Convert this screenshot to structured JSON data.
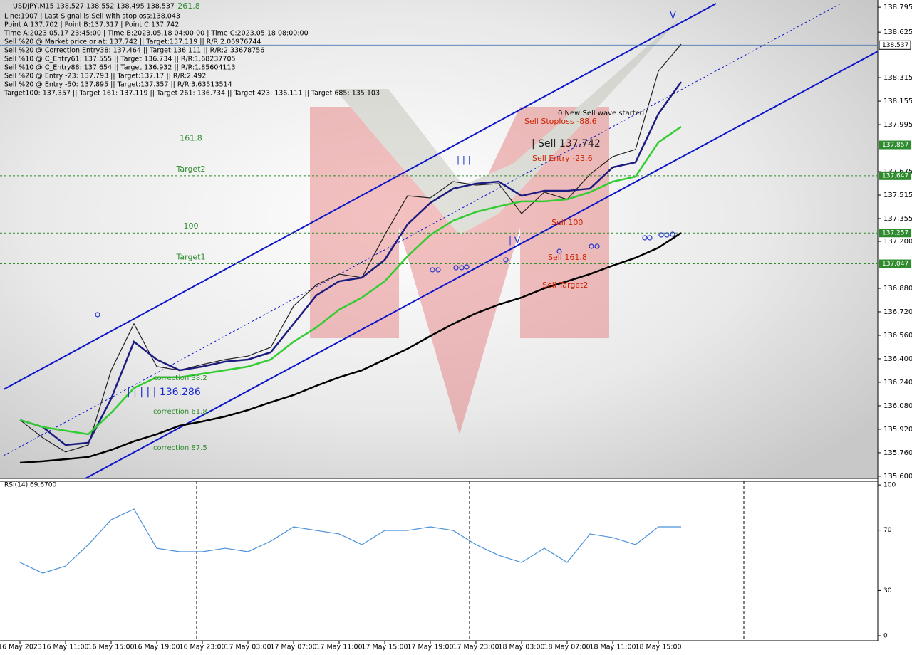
{
  "chart_data": [
    {
      "type": "line",
      "title": "USDJPY,M15  138.527 138.552 138.495 138.537",
      "info_lines": [
        "Line:1907 | Last Signal is:Sell with stoploss:138.043",
        "Point A:137.702 | Point B:137.317 | Point C:137.742",
        "Time A:2023.05.17 23:45:00 | Time B:2023.05.18 04:00:00 | Time C:2023.05.18 08:00:00",
        "Sell %20 @ Market price or at: 137.742 || Target:137.119 || R/R:2.06976744",
        "Sell %20 @ Correction Entry38: 137.464 || Target:136.111 || R/R:2.33678756",
        "Sell %10 @ C_Entry61: 137.555 || Target:136.734 || R/R:1.68237705",
        "Sell %10 @ C_Entry88: 137.654 || Target:136.932 || R/R:1.85604113",
        "Sell %20 @ Entry -23: 137.793 || Target:137.17 || R/R:2.492",
        "Sell %20 @ Entry -50: 137.895 || Target:137.357 || R/R:3.63513514",
        "Target100: 137.357 || Target 161: 137.119 || Target 261: 136.734 || Target 423: 136.111 || Target 685: 135.103"
      ],
      "categories": [
        "16 May 2023",
        null,
        "16 May 11:00",
        null,
        "16 May 15:00",
        null,
        "16 May 19:00",
        null,
        "16 May 23:00",
        null,
        "17 May 03:00",
        null,
        "17 May 07:00",
        null,
        "17 May 11:00",
        null,
        "17 May 15:00",
        null,
        "17 May 19:00",
        null,
        "17 May 23:00",
        null,
        "18 May 03:00",
        null,
        "18 May 07:00",
        null,
        "18 May 11:00",
        null,
        "18 May 15:00",
        null
      ],
      "series": [
        {
          "color": "#222222",
          "values": [
            135.983,
            135.862,
            135.765,
            135.813,
            136.322,
            136.638,
            136.347,
            136.322,
            136.361,
            136.395,
            136.419,
            136.478,
            136.759,
            136.904,
            136.977,
            136.953,
            137.244,
            137.51,
            137.496,
            137.607,
            137.583,
            137.593,
            137.389,
            137.535,
            137.486,
            137.656,
            137.777,
            137.826,
            138.359,
            138.543
          ]
        },
        {
          "color": "#1c1c80",
          "values": [
            135.983,
            135.935,
            135.813,
            135.828,
            136.128,
            136.516,
            136.395,
            136.322,
            136.347,
            136.381,
            136.395,
            136.444,
            136.638,
            136.832,
            136.928,
            136.953,
            137.074,
            137.316,
            137.462,
            137.559,
            137.593,
            137.607,
            137.51,
            137.544,
            137.544,
            137.559,
            137.704,
            137.738,
            138.068,
            138.286
          ]
        },
        {
          "color": "#33cc33",
          "values": [
            135.983,
            135.935,
            135.91,
            135.886,
            136.032,
            136.201,
            136.274,
            136.274,
            136.298,
            136.322,
            136.347,
            136.395,
            136.516,
            136.613,
            136.735,
            136.817,
            136.928,
            137.098,
            137.244,
            137.341,
            137.4,
            137.438,
            137.472,
            137.472,
            137.486,
            137.535,
            137.607,
            137.641,
            137.874,
            137.981
          ]
        },
        {
          "color": "#000000",
          "values": [
            135.692,
            135.702,
            135.716,
            135.731,
            135.779,
            135.838,
            135.886,
            135.944,
            135.973,
            136.007,
            136.051,
            136.104,
            136.153,
            136.216,
            136.274,
            136.322,
            136.395,
            136.468,
            136.555,
            136.638,
            136.71,
            136.769,
            136.817,
            136.88,
            136.928,
            136.977,
            137.035,
            137.088,
            137.156,
            137.258
          ]
        }
      ],
      "ylim": [
        135.585,
        138.844
      ],
      "yticks": [
        138.795,
        138.625,
        138.315,
        138.155,
        137.995,
        137.675,
        137.515,
        137.355,
        {
          "value": 137.2,
          "label": "137.200"
        },
        {
          "value": 136.88,
          "label": "136.880"
        },
        {
          "value": 136.72,
          "label": "136.720"
        },
        {
          "value": 136.56,
          "label": "136.560"
        },
        {
          "value": 136.4,
          "label": "136.400"
        },
        {
          "value": 136.24,
          "label": "136.240"
        },
        {
          "value": 136.08,
          "label": "136.080"
        },
        {
          "value": 135.92,
          "label": "135.920"
        },
        {
          "value": 135.76,
          "label": "135.760"
        },
        {
          "value": 135.6,
          "label": "135.600"
        }
      ],
      "last_price": 138.537,
      "levels": [
        {
          "label": "161.8",
          "value": 137.857
        },
        {
          "label": "Target2",
          "value": 137.647
        },
        {
          "label": "100",
          "value": 137.257
        },
        {
          "label": "Target1",
          "value": 137.047
        }
      ],
      "top_level_label": "261.8",
      "notes": [
        "0 New Sell wave started",
        "Sell Stoploss -88.6",
        "| Sell 137.742",
        "Sell Entry -23.6",
        "Sell 100",
        "Sell 161.8",
        "Sell Target2",
        "correction 38.2",
        "correction 61.8",
        "correction 87.5",
        "| | | | | 136.286",
        "| | |",
        "V",
        "| V"
      ]
    },
    {
      "type": "line",
      "title": "RSI(14) 69.6700",
      "values": [
        48.6,
        41.5,
        46.2,
        60.4,
        76.9,
        84,
        58,
        55.7,
        55.7,
        58,
        55.7,
        62.7,
        72.2,
        69.8,
        67.5,
        60.4,
        69.8,
        69.8,
        72.2,
        69.8,
        60.4,
        53.3,
        48.6,
        58,
        48.6,
        67.5,
        65.1,
        60.4,
        72.2,
        72.2
      ],
      "color": "#4a90d9",
      "ylim": [
        -3.3,
        102.4
      ],
      "yticks": [
        100,
        70,
        30,
        0
      ]
    }
  ]
}
